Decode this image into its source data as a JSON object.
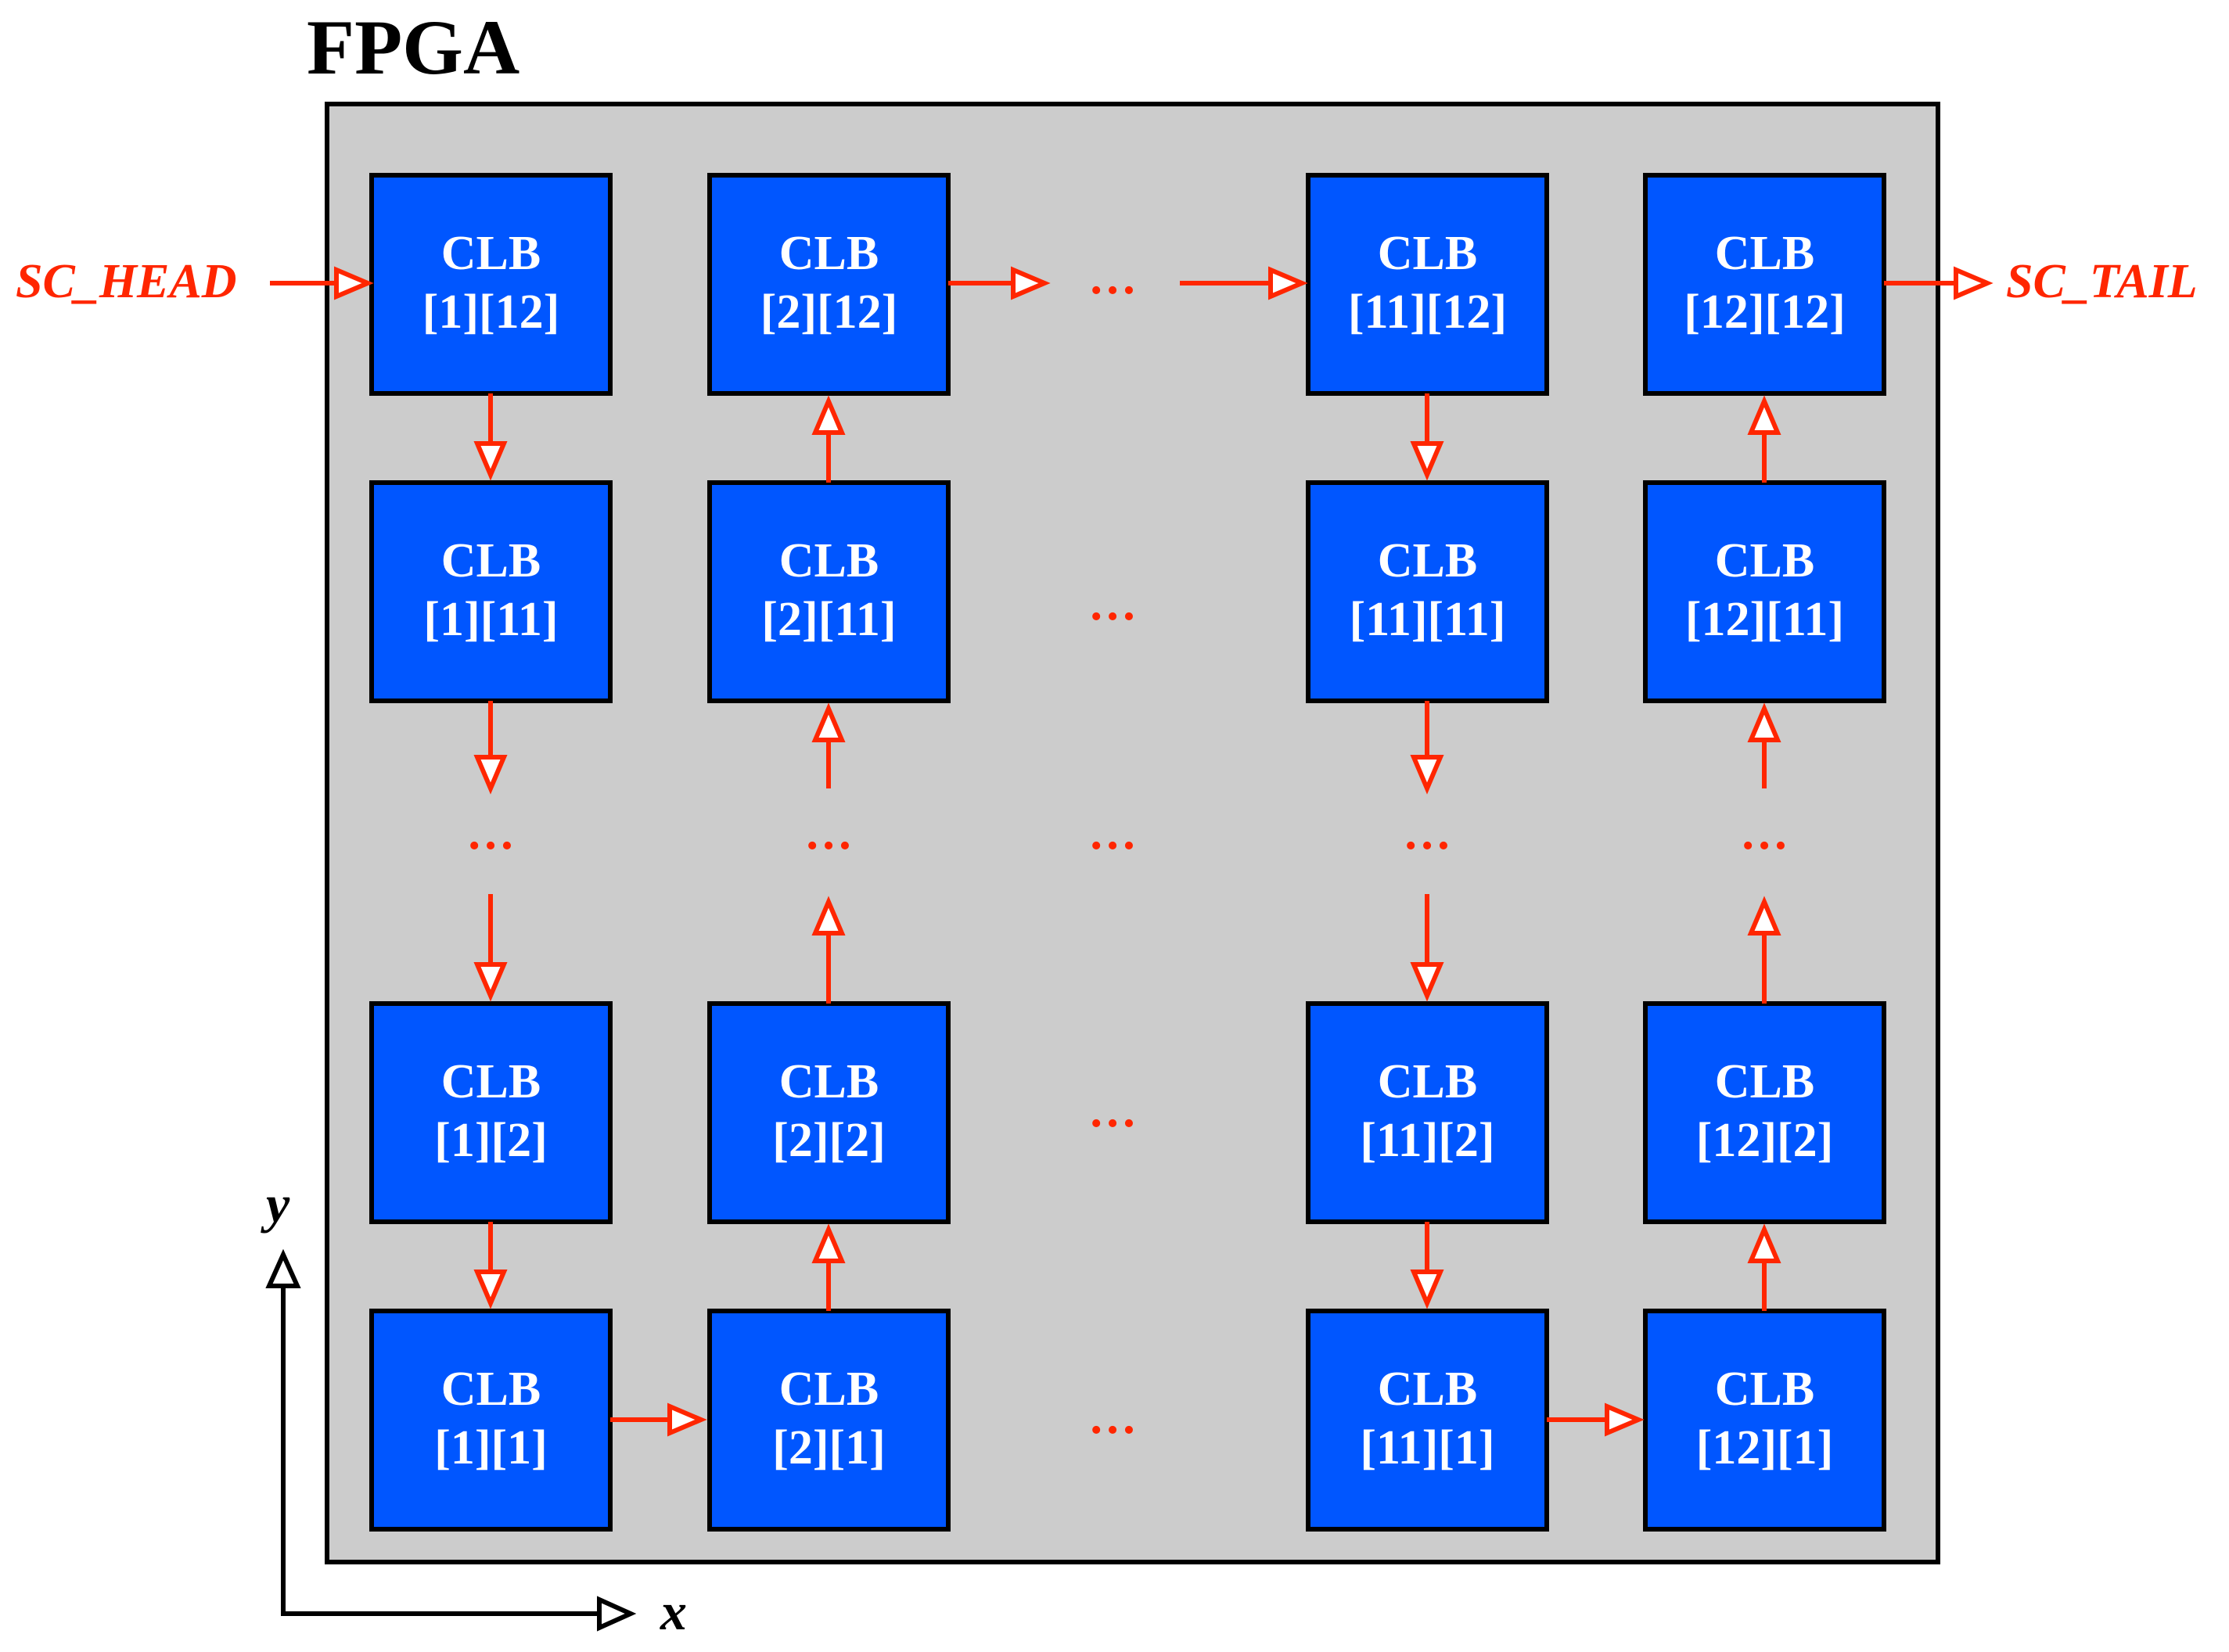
{
  "title": "FPGA",
  "scan_chain": {
    "head_label": "SC_HEAD",
    "tail_label": "SC_TAIL"
  },
  "axes": {
    "x_label": "x",
    "y_label": "y"
  },
  "block_name": "CLB",
  "ellipsis": "…",
  "columns": [
    "1",
    "2",
    "11",
    "12"
  ],
  "rows": [
    "12",
    "11",
    "2",
    "1"
  ],
  "colors": {
    "chip_fill": "#cccccc",
    "block_fill": "#0056ff",
    "arrow": "#ff2600",
    "border": "#000000"
  }
}
